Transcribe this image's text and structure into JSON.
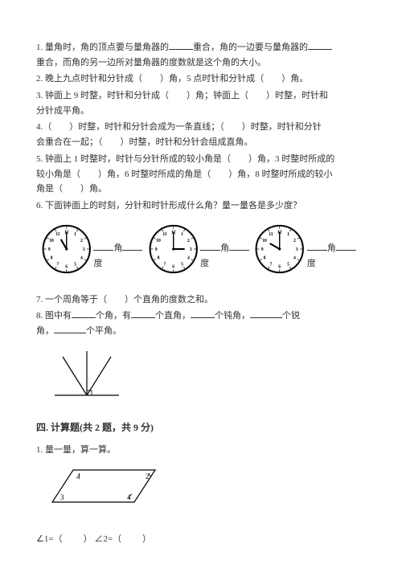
{
  "q1": {
    "pre1": "1. 量角时，角的顶点要与量角器的",
    "mid1": "重合，角的一边要与量角器的",
    "pre2": "重合，而角的另一边所对量角器的度数就是这个角的大小。"
  },
  "q2": {
    "pre": "2. 晚上九点时针和分针成（",
    "mid1": "）角，5 点时针和分针成（",
    "mid2": "）角。"
  },
  "q3": {
    "pre": "3. 钟面上 9 时整，时针和分针成（",
    "mid1": "）角；钟面上（",
    "mid2": "）时整，时针和",
    "line2": "分针成平角。"
  },
  "q4": {
    "pre": "4.（",
    "mid1": "）时整，时针和分针会成为一条直线；（",
    "mid2": "）时整，时针和分针",
    "line2pre": "会重合在一起；（",
    "line2mid": "）时整，时针和分针会组成直角。"
  },
  "q5": {
    "pre": "5. 钟面上 1 时整时，时针与分针所成的较小角是（",
    "mid1": "）角，3 时整时所成的",
    "line2pre": "较小角是（",
    "line2mid": "）角，6 时整时所成的角是（",
    "line2mid2": "）角，8 时整时所成的较小",
    "line3pre": "角是（",
    "line3end": "）角。"
  },
  "q6": "6. 下面钟面上的时刻，分针和时针形成什么角？量一量各是多少度？",
  "clocks": {
    "label_angle": "角",
    "label_degree": "度",
    "c1": {
      "hour_angle": -30,
      "min_angle": 0
    },
    "c2": {
      "hour_angle": 90,
      "min_angle": 0
    },
    "c3": {
      "hour_angle": -60,
      "min_angle": 0
    },
    "face_color": "#ffffff",
    "stroke": "#000000"
  },
  "q7": {
    "pre": "7. 一个周角等于（",
    "end": "）个直角的度数之和。"
  },
  "q8": {
    "pre": "8. 图中有",
    "mid1": "个角，有",
    "mid2": "个直角，",
    "mid3": "个钝角，",
    "mid4": "个锐",
    "line2pre": "角，",
    "line2end": "个平角。"
  },
  "section4": "四. 计算题(共 2 题，共 9 分)",
  "calc1": "1. 量一量，算一算。",
  "angles_expr": {
    "a1pre": "∠1=（",
    "a1end": "）  ∠2=（",
    "a2end": "）"
  },
  "para_labels": {
    "l1": "1",
    "l2": "2",
    "l3": "3",
    "l4": "4"
  }
}
